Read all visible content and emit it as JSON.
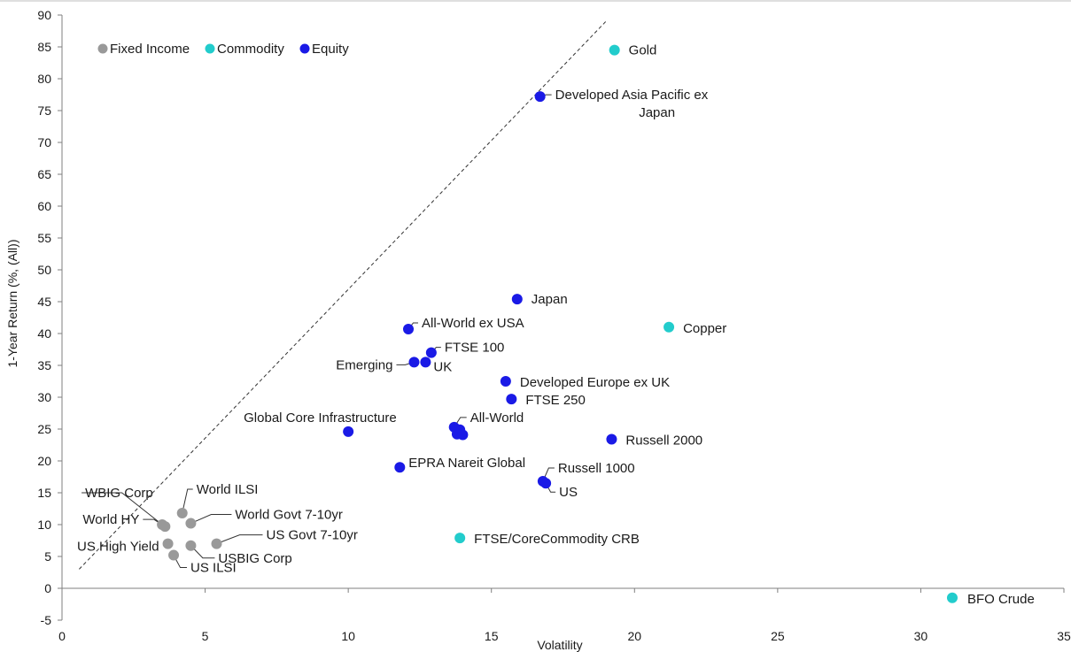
{
  "chart_data": {
    "type": "scatter",
    "xlabel": "Volatility",
    "ylabel": "1-Year Return (%, (All))",
    "xlim": [
      0,
      35
    ],
    "ylim": [
      -5,
      90
    ],
    "x_ticks": [
      0,
      5,
      10,
      15,
      20,
      25,
      30,
      35
    ],
    "y_ticks": [
      -5,
      0,
      5,
      10,
      15,
      20,
      25,
      30,
      35,
      40,
      45,
      50,
      55,
      60,
      65,
      70,
      75,
      80,
      85,
      90
    ],
    "grid": false,
    "legend": {
      "placement": "top-left",
      "items": [
        "Fixed Income",
        "Commodity",
        "Equity"
      ]
    },
    "colors": {
      "Fixed Income": "#999999",
      "Commodity": "#22cccc",
      "Equity": "#1a1ae6"
    },
    "reference_line": {
      "style": "dashed",
      "from": [
        0.6,
        3
      ],
      "to": [
        19,
        89
      ]
    },
    "series": [
      {
        "name": "Fixed Income",
        "points": [
          {
            "label": "WBIG Corp",
            "x": 3.5,
            "y": 10
          },
          {
            "label": "World ILSI",
            "x": 4.2,
            "y": 11.8
          },
          {
            "label": "World Govt 7-10yr",
            "x": 4.5,
            "y": 10.2
          },
          {
            "label": "World HY",
            "x": 3.6,
            "y": 9.7
          },
          {
            "label": "US High Yield",
            "x": 3.7,
            "y": 7
          },
          {
            "label": "US ILSI",
            "x": 3.9,
            "y": 5.2
          },
          {
            "label": "USBIG Corp",
            "x": 4.5,
            "y": 6.7
          },
          {
            "label": "US Govt 7-10yr",
            "x": 5.4,
            "y": 7
          }
        ]
      },
      {
        "name": "Commodity",
        "points": [
          {
            "label": "Gold",
            "x": 19.3,
            "y": 84.5
          },
          {
            "label": "Copper",
            "x": 21.2,
            "y": 41
          },
          {
            "label": "FTSE/CoreCommodity CRB",
            "x": 13.9,
            "y": 7.9
          },
          {
            "label": "BFO Crude",
            "x": 31.1,
            "y": -1.5
          }
        ]
      },
      {
        "name": "Equity",
        "points": [
          {
            "label": "Developed Asia Pacific ex Japan",
            "x": 16.7,
            "y": 77.2
          },
          {
            "label": "Japan",
            "x": 15.9,
            "y": 45.4
          },
          {
            "label": "All-World ex USA",
            "x": 12.1,
            "y": 40.7
          },
          {
            "label": "FTSE 100",
            "x": 12.9,
            "y": 37
          },
          {
            "label": "Emerging",
            "x": 12.3,
            "y": 35.5
          },
          {
            "label": "UK",
            "x": 12.7,
            "y": 35.5
          },
          {
            "label": "Developed Europe ex UK",
            "x": 15.5,
            "y": 32.5
          },
          {
            "label": "FTSE 250",
            "x": 15.7,
            "y": 29.7
          },
          {
            "label": "Global Core Infrastructure",
            "x": 10,
            "y": 24.6
          },
          {
            "label": "All-World",
            "x": 13.7,
            "y": 25.3
          },
          {
            "label": "",
            "x": 13.9,
            "y": 24.9
          },
          {
            "label": "",
            "x": 13.8,
            "y": 24.2
          },
          {
            "label": "",
            "x": 14,
            "y": 24.1
          },
          {
            "label": "Russell 2000",
            "x": 19.2,
            "y": 23.4
          },
          {
            "label": "EPRA Nareit Global",
            "x": 11.8,
            "y": 19
          },
          {
            "label": "Russell 1000",
            "x": 16.8,
            "y": 16.8
          },
          {
            "label": "US",
            "x": 16.9,
            "y": 16.5
          }
        ]
      }
    ]
  }
}
